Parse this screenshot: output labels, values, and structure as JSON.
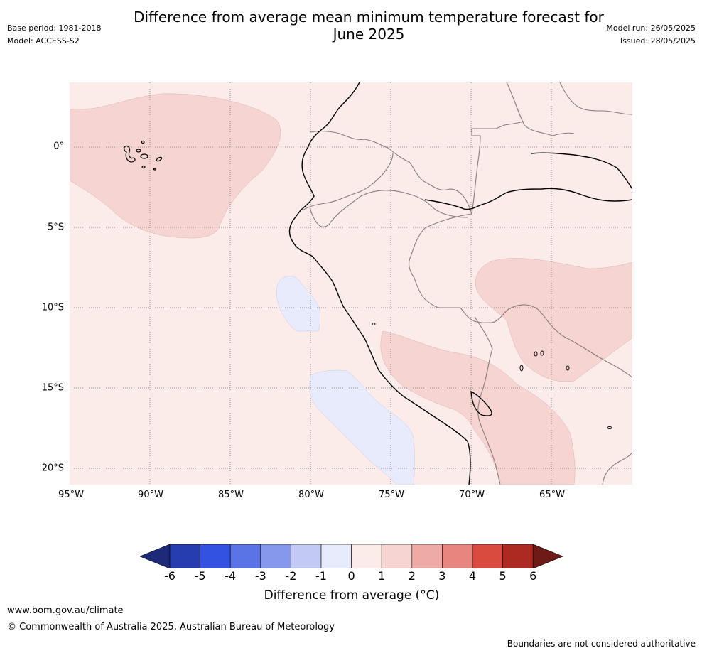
{
  "title_line1": "Difference from average mean minimum temperature forecast for",
  "title_line2": "June 2025",
  "base_period": "Base period: 1981-2018",
  "model": "Model: ACCESS-S2",
  "model_run": "Model run: 26/05/2025",
  "issued": "Issued: 28/05/2025",
  "lat_labels": [
    "0°",
    "5°S",
    "10°S",
    "15°S",
    "20°S"
  ],
  "lon_labels": [
    "95°W",
    "90°W",
    "85°W",
    "80°W",
    "75°W",
    "70°W",
    "65°W"
  ],
  "colorbar": {
    "ticks": [
      "-6",
      "-5",
      "-4",
      "-3",
      "-2",
      "-1",
      "0",
      "1",
      "2",
      "3",
      "4",
      "5",
      "6"
    ],
    "colors": [
      "#1c2a79",
      "#263db0",
      "#3452e0",
      "#5a74e6",
      "#8698ec",
      "#c2c9f4",
      "#e8ebfb",
      "#fbebe9",
      "#f5d4d1",
      "#eeaaa5",
      "#e6867e",
      "#d94b3f",
      "#ad2a22",
      "#6e1a16"
    ],
    "label": "Difference from average (°C)"
  },
  "shading": {
    "background": "#fbebe9",
    "warm_anomaly": "#f5d4d1",
    "cool_anomaly": "#e8ebfb"
  },
  "footer": {
    "url": "www.bom.gov.au/climate",
    "copyright": "© Commonwealth of Australia 2025, Australian Bureau of Meteorology",
    "disclaimer": "Boundaries are not considered authoritative"
  }
}
